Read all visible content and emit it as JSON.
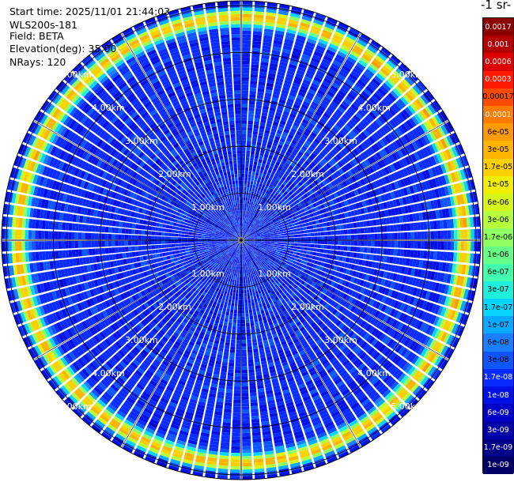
{
  "info": {
    "start_time": "Start time: 2025/11/01 21:44:03",
    "instrument": "WLS200s-181",
    "field": "Field: BETA",
    "elevation": "Elevation(deg): 35.00",
    "nrays": "NRays: 120"
  },
  "chart_data": {
    "type": "heatmap",
    "projection": "polar",
    "range_rings_km": [
      1,
      2,
      3,
      4,
      5
    ],
    "ring_labels": [
      "1.00km",
      "2.00km",
      "3.00km",
      "4.00km",
      "5.00km"
    ],
    "max_range_km": 5.1,
    "n_rays": 120,
    "grid_spoke_step_deg": 30,
    "colorbar": {
      "title": "-1 sr-",
      "labels": [
        "0.0017",
        "0.001",
        "0.0006",
        "0.0003",
        "0.00017",
        "0.0001",
        "6e-05",
        "3e-05",
        "1.7e-05",
        "1e-05",
        "6e-06",
        "3e-06",
        "1.7e-06",
        "1e-06",
        "6e-07",
        "3e-07",
        "1.7e-07",
        "1e-07",
        "6e-08",
        "3e-08",
        "1.7e-08",
        "1e-08",
        "6e-09",
        "3e-09",
        "1.7e-09",
        "1e-09"
      ],
      "colors": [
        "#8b0000",
        "#b20000",
        "#dd0000",
        "#ff1a00",
        "#ff4b00",
        "#ff7c00",
        "#ff9a00",
        "#ffb400",
        "#ffd000",
        "#f2ee00",
        "#d8f51a",
        "#b6ff3c",
        "#8fff62",
        "#68ff89",
        "#42ffb0",
        "#1ef0dc",
        "#08d4ff",
        "#08aaff",
        "#1a7fff",
        "#0d55ff",
        "#0a2bff",
        "#0011e6",
        "#0000c8",
        "#0000a8",
        "#000088",
        "#000066"
      ],
      "text_colors": [
        "#ffffff",
        "#ffffff",
        "#ffffff",
        "#ffffff",
        "#000000",
        "#ffffff",
        "#000000",
        "#000000",
        "#000000",
        "#000000",
        "#000000",
        "#000000",
        "#000000",
        "#000000",
        "#000000",
        "#000000",
        "#000000",
        "#000000",
        "#000000",
        "#000000",
        "#ffffff",
        "#ffffff",
        "#ffffff",
        "#ffffff",
        "#ffffff",
        "#ffffff"
      ]
    },
    "field_profile": {
      "description_values_log10": true,
      "background_log10": -7.8,
      "ring_peak_range_km": 4.75,
      "ring_peak_log10": -4.5
    }
  }
}
